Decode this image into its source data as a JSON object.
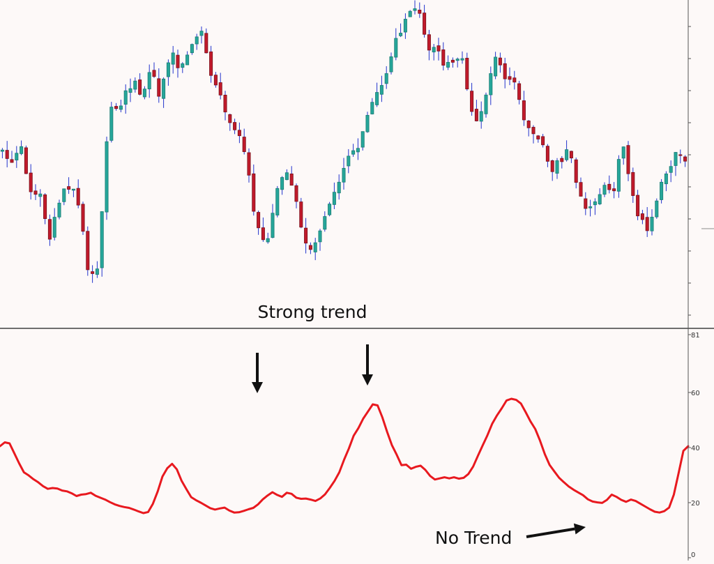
{
  "colors": {
    "background": "#fdf9f8",
    "axis": "#555555",
    "divider": "#6e6e6e",
    "bull_body": "#26a69a",
    "bull_border": "#1a7d73",
    "bear_body": "#c11a2b",
    "bear_border": "#7a0f19",
    "wick": "#2233cc",
    "adx_line": "#e8191f",
    "arrow": "#111111",
    "annotation_text": "#111111"
  },
  "annotations": {
    "strong_trend": "Strong trend",
    "no_trend": "No Trend"
  },
  "chart_data": [
    {
      "type": "candlestick",
      "title": "",
      "grid": false,
      "candle_count": 145,
      "price_range": [
        0,
        100
      ],
      "close_path": [
        [
          0,
          54
        ],
        [
          8,
          52
        ],
        [
          15,
          56
        ],
        [
          22,
          41
        ],
        [
          30,
          42
        ],
        [
          38,
          27
        ],
        [
          45,
          39
        ],
        [
          52,
          45
        ],
        [
          60,
          40
        ],
        [
          68,
          19
        ],
        [
          76,
          17
        ],
        [
          85,
          69
        ],
        [
          92,
          66
        ],
        [
          98,
          73
        ],
        [
          105,
          76
        ],
        [
          112,
          71
        ],
        [
          118,
          81
        ],
        [
          125,
          70
        ],
        [
          135,
          87
        ],
        [
          140,
          79
        ],
        [
          150,
          86
        ],
        [
          152,
          88
        ],
        [
          159,
          92
        ],
        [
          165,
          78
        ],
        [
          172,
          74
        ],
        [
          178,
          67
        ],
        [
          184,
          62
        ],
        [
          190,
          58
        ],
        [
          196,
          49
        ],
        [
          202,
          32
        ],
        [
          210,
          24
        ],
        [
          218,
          42
        ],
        [
          226,
          49
        ],
        [
          233,
          42
        ],
        [
          240,
          28
        ],
        [
          248,
          24
        ],
        [
          255,
          33
        ],
        [
          262,
          40
        ],
        [
          270,
          46
        ],
        [
          277,
          54
        ],
        [
          282,
          55
        ],
        [
          290,
          64
        ],
        [
          297,
          71
        ],
        [
          305,
          76
        ],
        [
          312,
          88
        ],
        [
          318,
          91
        ],
        [
          324,
          97
        ],
        [
          330,
          99
        ],
        [
          335,
          93
        ],
        [
          340,
          85
        ],
        [
          345,
          87
        ],
        [
          352,
          81
        ],
        [
          360,
          82
        ],
        [
          366,
          84
        ],
        [
          372,
          69
        ],
        [
          378,
          64
        ],
        [
          385,
          70
        ],
        [
          392,
          83
        ],
        [
          398,
          79
        ],
        [
          404,
          76
        ],
        [
          410,
          74
        ],
        [
          417,
          63
        ],
        [
          423,
          59
        ],
        [
          430,
          57
        ],
        [
          437,
          48
        ],
        [
          445,
          52
        ],
        [
          452,
          55
        ],
        [
          458,
          43
        ],
        [
          465,
          36
        ],
        [
          472,
          38
        ],
        [
          479,
          44
        ],
        [
          487,
          42
        ],
        [
          493,
          58
        ],
        [
          497,
          52
        ],
        [
          503,
          40
        ],
        [
          508,
          33
        ],
        [
          514,
          31
        ],
        [
          520,
          37
        ],
        [
          526,
          45
        ],
        [
          532,
          50
        ],
        [
          537,
          55
        ],
        [
          544,
          51
        ]
      ],
      "wick_spread": 3.2,
      "seed": 20240521
    },
    {
      "type": "line",
      "title": "",
      "grid": false,
      "ylim": [
        0,
        81
      ],
      "y_ticks": [
        0,
        20,
        40,
        60,
        81
      ],
      "x": [
        0,
        1,
        2,
        3,
        4,
        5,
        6,
        7,
        8,
        9,
        10,
        11,
        12,
        13,
        14,
        15,
        16,
        17,
        18,
        19,
        20,
        21,
        22,
        23,
        24,
        25,
        26,
        27,
        28,
        29,
        30,
        31,
        32,
        33,
        34,
        35,
        36,
        37,
        38,
        39,
        40,
        41,
        42,
        43,
        44,
        45,
        46,
        47,
        48,
        49,
        50,
        51,
        52,
        53,
        54,
        55,
        56,
        57,
        58,
        59,
        60,
        61,
        62,
        63,
        64,
        65,
        66,
        67,
        68,
        69,
        70,
        71,
        72,
        73,
        74,
        75,
        76,
        77,
        78,
        79,
        80,
        81,
        82,
        83,
        84,
        85,
        86,
        87,
        88,
        89,
        90,
        91,
        92,
        93,
        94,
        95,
        96,
        97,
        98,
        99,
        100,
        101,
        102,
        103,
        104,
        105,
        106,
        107,
        108,
        109,
        110,
        111,
        112,
        113,
        114,
        115,
        116,
        117,
        118,
        119,
        120,
        121,
        122,
        123,
        124,
        125,
        126,
        127,
        128,
        129,
        130,
        131,
        132,
        133,
        134,
        135,
        136,
        137,
        138,
        139,
        140,
        141,
        142,
        143,
        144
      ],
      "series": [
        {
          "values": [
            40.5,
            41.9,
            41.5,
            37.9,
            34.3,
            31.0,
            29.9,
            28.5,
            27.4,
            26.0,
            25.0,
            25.3,
            25.1,
            24.4,
            24.1,
            23.4,
            22.4,
            22.9,
            23.1,
            23.6,
            22.5,
            21.8,
            21.1,
            20.2,
            19.4,
            18.8,
            18.4,
            18.1,
            17.5,
            16.8,
            16.2,
            16.6,
            19.6,
            24.1,
            29.5,
            32.5,
            34.1,
            32.1,
            27.9,
            24.9,
            22.0,
            20.9,
            20.0,
            19.0,
            18.0,
            17.5,
            17.9,
            18.2,
            17.1,
            16.4,
            16.5,
            17.0,
            17.6,
            18.1,
            19.4,
            21.2,
            22.6,
            23.8,
            22.8,
            22.1,
            23.6,
            23.2,
            21.8,
            21.4,
            21.5,
            21.1,
            20.6,
            21.5,
            23.0,
            25.3,
            27.9,
            31.0,
            35.6,
            39.7,
            44.3,
            47.1,
            50.5,
            53.1,
            55.7,
            55.3,
            51.0,
            45.7,
            40.9,
            37.4,
            33.6,
            33.8,
            32.3,
            33.0,
            33.4,
            31.9,
            29.7,
            28.4,
            28.8,
            29.2,
            28.8,
            29.2,
            28.7,
            29.0,
            30.4,
            33.1,
            37.0,
            40.8,
            44.5,
            48.7,
            51.7,
            54.3,
            57.1,
            57.7,
            57.3,
            56.0,
            52.8,
            49.5,
            46.7,
            42.5,
            37.6,
            33.7,
            31.3,
            29.0,
            27.4,
            25.9,
            24.7,
            23.7,
            22.7,
            21.2,
            20.4,
            20.1,
            19.9,
            21.0,
            22.9,
            22.1,
            21.0,
            20.3,
            21.1,
            20.6,
            19.6,
            18.6,
            17.6,
            16.7,
            16.4,
            16.9,
            18.2,
            22.9,
            30.8,
            38.8,
            40.5
          ]
        }
      ]
    }
  ]
}
